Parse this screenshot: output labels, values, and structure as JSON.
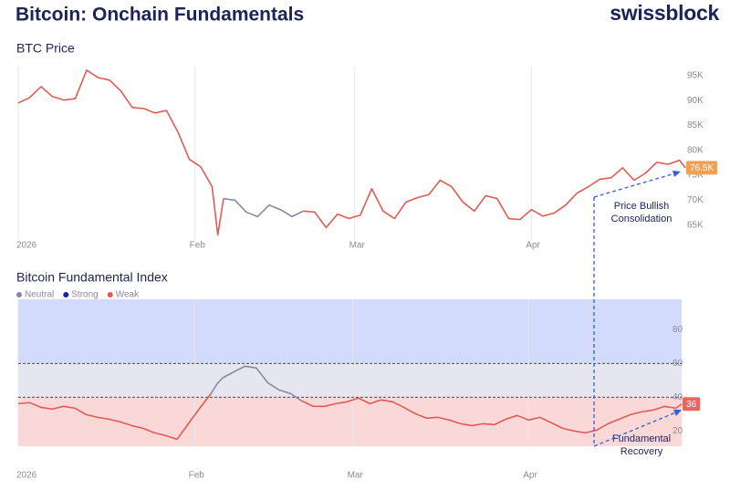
{
  "header": {
    "title": "Bitcoin: Onchain Fundamentals",
    "brand": "swissblock"
  },
  "chart_data": [
    {
      "type": "line",
      "title": "BTC Price",
      "x": [
        0,
        2,
        4,
        6,
        8,
        10,
        12,
        14,
        16,
        18,
        20,
        22,
        24,
        26,
        28,
        30,
        32,
        34,
        35,
        36,
        38,
        40,
        42,
        44,
        46,
        48,
        50,
        52,
        54,
        56,
        58,
        60,
        62,
        64,
        66,
        68,
        70,
        72,
        74,
        76,
        78,
        80,
        82,
        84,
        86,
        88,
        90,
        92,
        94,
        96,
        98,
        100,
        102,
        104,
        106,
        108,
        110,
        112,
        114,
        116,
        117
      ],
      "xlim": [
        0,
        117
      ],
      "xticks": [
        {
          "value": 0,
          "label": "2026"
        },
        {
          "value": 31,
          "label": "Feb"
        },
        {
          "value": 59,
          "label": "Mar"
        },
        {
          "value": 90,
          "label": "Apr"
        }
      ],
      "ylim": [
        62,
        97
      ],
      "yticks": [
        {
          "value": 65,
          "label": "65K"
        },
        {
          "value": 70,
          "label": "70K"
        },
        {
          "value": 75,
          "label": "75K"
        },
        {
          "value": 80,
          "label": "80K"
        },
        {
          "value": 85,
          "label": "85K"
        },
        {
          "value": 90,
          "label": "90K"
        },
        {
          "value": 95,
          "label": "95K"
        }
      ],
      "grid": true,
      "series": [
        {
          "color": "#e15b52",
          "label_color": "#f5a04a",
          "values": [
            89.5,
            90.6,
            92.8,
            90.8,
            90.1,
            90.4,
            96.1,
            94.6,
            94.1,
            91.9,
            88.6,
            88.4,
            87.5,
            88,
            83.7,
            78.2,
            76.7,
            72.7,
            63,
            70.3,
            null,
            null,
            null,
            null,
            null,
            null,
            67.8,
            67.6,
            64.5,
            67.2,
            66.3,
            67,
            72.3,
            67.8,
            66.3,
            69.6,
            70.5,
            71.1,
            74,
            72.7,
            69.6,
            67.8,
            70.9,
            70.3,
            66.3,
            66.1,
            68.1,
            66.8,
            67.4,
            69,
            71.4,
            72.7,
            74.2,
            74.5,
            76.5,
            74,
            75.4,
            77.6,
            77.2,
            78,
            76.5
          ],
          "value_labels": [
            null,
            null,
            null,
            null,
            null,
            null,
            null,
            null,
            null,
            null,
            null,
            null,
            null,
            null,
            null,
            null,
            null,
            null,
            null,
            null,
            null,
            null,
            null,
            null,
            null,
            null,
            null,
            null,
            null,
            null,
            null,
            null,
            null,
            null,
            null,
            null,
            null,
            null,
            null,
            null,
            null,
            null,
            null,
            null,
            null,
            null,
            null,
            null,
            null,
            null,
            null,
            null,
            null,
            null,
            null,
            null,
            null,
            null,
            null,
            null,
            "76.5K"
          ]
        },
        {
          "color": "#8a87a8",
          "values": [
            null,
            null,
            null,
            null,
            null,
            null,
            null,
            null,
            null,
            null,
            null,
            null,
            null,
            null,
            null,
            null,
            null,
            null,
            null,
            70.3,
            70,
            67.6,
            66.7,
            69,
            68.1,
            66.7,
            67.8,
            null,
            null,
            null,
            null,
            null,
            null,
            null,
            null,
            null,
            null,
            null,
            null,
            null,
            null,
            null,
            null,
            null,
            null,
            null,
            null,
            null,
            null,
            null,
            null,
            null,
            null,
            null,
            null,
            null,
            null,
            null,
            null,
            null,
            null
          ]
        }
      ],
      "annotation": [
        "Price Bullish",
        "Consolidation"
      ]
    },
    {
      "type": "line",
      "title": "Bitcoin Fundamental Index",
      "legend": [
        {
          "name": "Neutral",
          "color": "#8a87a8"
        },
        {
          "name": "Strong",
          "color": "#1c1f9e"
        },
        {
          "name": "Weak",
          "color": "#e15b52"
        }
      ],
      "x": [
        0,
        2,
        4,
        6,
        8,
        10,
        12,
        14,
        16,
        18,
        20,
        22,
        24,
        26,
        28,
        30,
        32,
        34,
        35,
        36,
        38,
        40,
        42,
        44,
        46,
        48,
        50,
        52,
        54,
        56,
        58,
        60,
        62,
        64,
        66,
        68,
        70,
        72,
        74,
        76,
        78,
        80,
        82,
        84,
        86,
        88,
        90,
        92,
        94,
        96,
        98,
        100,
        102,
        104,
        106,
        108,
        110,
        112,
        114,
        116,
        117
      ],
      "xlim": [
        0,
        117
      ],
      "xticks": [
        {
          "value": 0,
          "label": "2026"
        },
        {
          "value": 31,
          "label": "Feb"
        },
        {
          "value": 59,
          "label": "Mar"
        },
        {
          "value": 90,
          "label": "Apr"
        }
      ],
      "ylim": [
        11,
        98
      ],
      "yticks": [
        20,
        40,
        60,
        80
      ],
      "grid": true,
      "bands": [
        {
          "from": 60,
          "to": 98,
          "color": "#d2dbfb"
        },
        {
          "from": 40,
          "to": 60,
          "color": "#e6e6ee"
        },
        {
          "from": 11,
          "to": 40,
          "color": "#fbd8d8"
        }
      ],
      "thresholds": [
        40,
        60
      ],
      "series": [
        {
          "color": "#e15b52",
          "label_color": "#e8665f",
          "values": [
            36.2,
            36.8,
            34,
            33,
            34.6,
            33.5,
            29.7,
            28.1,
            27,
            25.4,
            23.2,
            21.6,
            18.9,
            17.3,
            15.1,
            24.3,
            33.5,
            42.2,
            null,
            null,
            null,
            null,
            null,
            null,
            null,
            null,
            37.8,
            34.6,
            34.6,
            36.2,
            37.3,
            39.5,
            36.2,
            38.4,
            37.3,
            34,
            30.3,
            27.6,
            28.1,
            26.5,
            24.3,
            23.2,
            24.3,
            23.8,
            27,
            29.2,
            26.5,
            28.1,
            24.9,
            21.6,
            20,
            18.9,
            20.5,
            24.3,
            27,
            29.7,
            31.4,
            32.4,
            34.6,
            33.5,
            36
          ],
          "value_labels": [
            null,
            null,
            null,
            null,
            null,
            null,
            null,
            null,
            null,
            null,
            null,
            null,
            null,
            null,
            null,
            null,
            null,
            null,
            null,
            null,
            null,
            null,
            null,
            null,
            null,
            null,
            null,
            null,
            null,
            null,
            null,
            null,
            null,
            null,
            null,
            null,
            null,
            null,
            null,
            null,
            null,
            null,
            null,
            null,
            null,
            null,
            null,
            null,
            null,
            null,
            null,
            null,
            null,
            null,
            null,
            null,
            null,
            null,
            null,
            null,
            "36"
          ]
        },
        {
          "color": "#8a87a8",
          "values": [
            null,
            null,
            null,
            null,
            null,
            null,
            null,
            null,
            null,
            null,
            null,
            null,
            null,
            null,
            null,
            null,
            null,
            42.2,
            47.6,
            51.4,
            55,
            58.4,
            57.3,
            48.6,
            44.3,
            42.2,
            37.8,
            null,
            null,
            null,
            null,
            null,
            null,
            null,
            null,
            null,
            null,
            null,
            null,
            null,
            null,
            null,
            null,
            null,
            null,
            null,
            null,
            null,
            null,
            null,
            null,
            null,
            null,
            null,
            null,
            null,
            null,
            null,
            null,
            null,
            null
          ]
        }
      ],
      "annotation": [
        "Fundamental",
        "Recovery"
      ]
    }
  ]
}
